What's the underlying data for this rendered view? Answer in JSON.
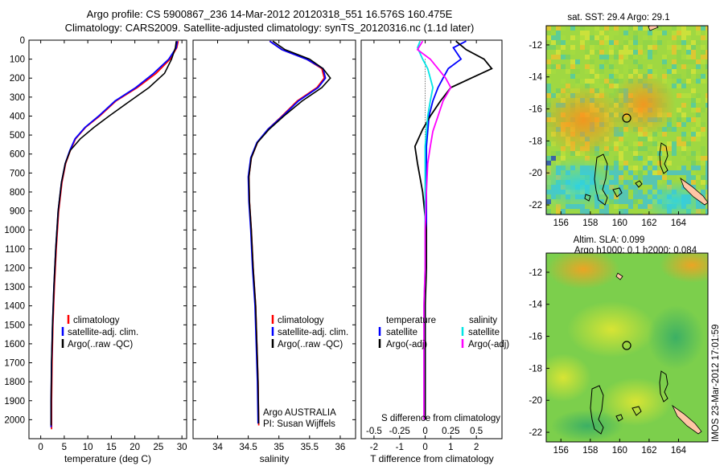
{
  "header": {
    "line1": "Argo profile: CS 5900867_236 14-Mar-2012 20120318_551 16.576S 160.475E",
    "line2": "Climatology: CARS2009. Satellite-adjusted climatology: synTS_20120316.nc (1.1d later)"
  },
  "watermark": "IMOS 23-Mar-2012 17:01:59",
  "colors": {
    "climatology": "#ff0000",
    "satellite": "#0000ff",
    "argo": "#000000",
    "sal_satellite": "#00e5e5",
    "sal_argo": "#ff00ff",
    "land": "#ffc6a5"
  },
  "chart_data": [
    {
      "type": "line",
      "xlabel": "temperature (deg C)",
      "ylabel": "",
      "xlim": [
        -2.5,
        31
      ],
      "ylim": [
        2100,
        0
      ],
      "xticks": [
        0,
        5,
        10,
        15,
        20,
        25,
        30
      ],
      "xtick_labels": [
        "0",
        "5",
        "10",
        "15",
        "20",
        "25",
        "30"
      ],
      "yticks": [
        0,
        100,
        200,
        300,
        400,
        500,
        600,
        700,
        800,
        900,
        1000,
        1100,
        1200,
        1300,
        1400,
        1500,
        1600,
        1700,
        1800,
        1900,
        2000
      ],
      "ytick_labels": [
        "0",
        "100",
        "200",
        "300",
        "400",
        "500",
        "600",
        "700",
        "800",
        "900",
        "1000",
        "1100",
        "1200",
        "1300",
        "1400",
        "1500",
        "1600",
        "1700",
        "1800",
        "1900",
        "2000"
      ],
      "legend": [
        "climatology",
        "satellite-adj. clim.",
        "Argo(..raw -QC)"
      ],
      "series": [
        {
          "name": "climatology",
          "color": "#ff0000",
          "x": [
            29.2,
            28.9,
            27.5,
            24.5,
            20.5,
            16.0,
            12.5,
            9.5,
            7.4,
            6.3,
            5.3,
            4.5,
            3.8,
            3.3,
            2.9,
            2.6,
            2.4,
            2.3,
            2.3
          ],
          "y": [
            5,
            40,
            100,
            175,
            250,
            320,
            400,
            460,
            520,
            580,
            650,
            750,
            900,
            1100,
            1300,
            1500,
            1700,
            1900,
            2050
          ]
        },
        {
          "name": "satellite-adj. clim.",
          "color": "#0000ff",
          "x": [
            29.0,
            28.8,
            27.2,
            24.0,
            20.2,
            15.8,
            12.3,
            9.4,
            7.3,
            6.2,
            5.2,
            4.4,
            3.7,
            3.2,
            2.8,
            2.5,
            2.3,
            2.2,
            2.2
          ],
          "y": [
            5,
            40,
            100,
            175,
            250,
            320,
            400,
            460,
            520,
            580,
            650,
            750,
            900,
            1100,
            1300,
            1500,
            1700,
            1900,
            2040
          ]
        },
        {
          "name": "Argo(..raw -QC)",
          "color": "#000000",
          "x": [
            28.8,
            28.6,
            27.8,
            26.3,
            23.0,
            19.0,
            14.5,
            11.3,
            8.4,
            6.3,
            5.2,
            4.4,
            3.7,
            3.2,
            2.8,
            2.5,
            2.3,
            2.2,
            2.2
          ],
          "y": [
            5,
            40,
            100,
            175,
            250,
            320,
            400,
            460,
            520,
            580,
            650,
            750,
            900,
            1100,
            1300,
            1500,
            1700,
            1900,
            2030
          ]
        }
      ]
    },
    {
      "type": "line",
      "xlabel": "salinity",
      "ylabel": "",
      "xlim": [
        33.6,
        36.25
      ],
      "ylim": [
        2100,
        0
      ],
      "xticks": [
        34,
        34.5,
        35,
        35.5,
        36
      ],
      "xtick_labels": [
        "34",
        "34.5",
        "35",
        "35.5",
        "36"
      ],
      "legend": [
        "climatology",
        "satellite-adj. clim.",
        "Argo(..raw -QC)"
      ],
      "annotation_lines": [
        "Argo AUSTRALIA",
        "PI: Susan Wijffels"
      ],
      "series": [
        {
          "name": "climatology",
          "color": "#ff0000",
          "x": [
            34.85,
            35.05,
            35.45,
            35.7,
            35.74,
            35.62,
            35.3,
            35.05,
            34.82,
            34.65,
            34.55,
            34.51,
            34.52,
            34.55,
            34.58,
            34.62,
            34.64,
            34.66,
            34.67
          ],
          "y": [
            5,
            50,
            100,
            150,
            200,
            250,
            320,
            400,
            470,
            540,
            620,
            720,
            850,
            1000,
            1200,
            1400,
            1600,
            1800,
            2030
          ]
        },
        {
          "name": "satellite-adj. clim.",
          "color": "#0000ff",
          "x": [
            34.85,
            35.05,
            35.45,
            35.72,
            35.76,
            35.64,
            35.32,
            35.06,
            34.82,
            34.64,
            34.54,
            34.5,
            34.51,
            34.54,
            34.57,
            34.61,
            34.63,
            34.65,
            34.66
          ],
          "y": [
            5,
            50,
            100,
            150,
            200,
            250,
            320,
            400,
            470,
            540,
            620,
            720,
            850,
            1000,
            1200,
            1400,
            1600,
            1800,
            2020
          ]
        },
        {
          "name": "Argo(..raw -QC)",
          "color": "#000000",
          "x": [
            34.9,
            35.1,
            35.5,
            35.72,
            35.84,
            35.7,
            35.38,
            35.08,
            34.84,
            34.65,
            34.55,
            34.51,
            34.52,
            34.55,
            34.58,
            34.62,
            34.64,
            34.66,
            34.67
          ],
          "y": [
            5,
            50,
            100,
            150,
            200,
            250,
            320,
            400,
            470,
            540,
            620,
            720,
            850,
            1000,
            1200,
            1400,
            1600,
            1800,
            2020
          ]
        }
      ]
    },
    {
      "type": "line",
      "xlabel": "T difference from climatology",
      "top_axis_label": "S difference from climatology",
      "xlim": [
        -2.5,
        3
      ],
      "ylim": [
        2100,
        0
      ],
      "xticks": [
        -2,
        -1,
        0,
        1,
        2
      ],
      "xtick_labels": [
        "-2",
        "-1",
        "0",
        "1",
        "2"
      ],
      "sticks": [
        -2,
        -1,
        0,
        1,
        2
      ],
      "stick_labels": [
        "-0.5",
        "-0.25",
        "0",
        "0.25",
        "0.5"
      ],
      "legend_temperature_title": "temperature",
      "legend_salinity_title": "salinity",
      "legend": [
        "satellite",
        "Argo(-adj)",
        "satellite",
        "Argo(-adj)"
      ],
      "series": [
        {
          "name": "satellite",
          "color": "#0000ff",
          "x": [
            1.6,
            1.1,
            1.4,
            0.9,
            0.7,
            0.5,
            0.3,
            0.15,
            0.1,
            0.05,
            0.05,
            0.05,
            0.05,
            0.0,
            0.0,
            0.0,
            0.0
          ],
          "y": [
            5,
            40,
            100,
            150,
            200,
            250,
            320,
            400,
            480,
            560,
            650,
            800,
            1000,
            1200,
            1400,
            1700,
            2000
          ]
        },
        {
          "name": "Argo(-adj)",
          "color": "#000000",
          "x": [
            1.2,
            1.6,
            2.3,
            2.6,
            1.8,
            1.0,
            0.6,
            0.2,
            -0.1,
            -0.4,
            -0.3,
            -0.1,
            0.05,
            0.05,
            0.0,
            0.0,
            0.0
          ],
          "y": [
            5,
            50,
            100,
            150,
            200,
            250,
            320,
            400,
            470,
            560,
            650,
            800,
            1000,
            1200,
            1400,
            1700,
            2000
          ]
        },
        {
          "name": "satellite",
          "color": "#00e5e5",
          "x": [
            -0.2,
            -0.3,
            -0.1,
            0.1,
            0.2,
            0.3,
            0.2,
            0.1,
            0.05,
            0.0,
            0.0,
            0.0,
            0.0,
            0.0,
            -0.05,
            -0.05,
            -0.05
          ],
          "y": [
            5,
            40,
            100,
            150,
            200,
            250,
            320,
            400,
            480,
            560,
            650,
            800,
            1000,
            1200,
            1400,
            1700,
            2000
          ]
        },
        {
          "name": "Argo(-adj)",
          "color": "#ff00ff",
          "x": [
            -0.1,
            -0.3,
            0.2,
            0.5,
            0.8,
            1.0,
            0.7,
            0.5,
            0.3,
            0.2,
            0.1,
            0.05,
            0.0,
            0.0,
            -0.05,
            -0.05,
            -0.05
          ],
          "y": [
            5,
            50,
            100,
            150,
            200,
            250,
            320,
            400,
            480,
            560,
            650,
            800,
            1000,
            1200,
            1400,
            1700,
            2000
          ]
        }
      ]
    },
    {
      "type": "heatmap",
      "title": "sat. SST: 29.4  Argo: 29.1",
      "xlim": [
        155,
        166
      ],
      "ylim": [
        -22.6,
        -10.8
      ],
      "xticks": [
        156,
        158,
        160,
        162,
        164
      ],
      "xtick_labels": [
        "156",
        "158",
        "160",
        "162",
        "164"
      ],
      "yticks": [
        -12,
        -14,
        -16,
        -18,
        -20,
        -22
      ],
      "ytick_labels": [
        "-12",
        "-14",
        "-16",
        "-18",
        "-20",
        "-22"
      ],
      "marker": {
        "lon": 160.475,
        "lat": -16.576
      }
    },
    {
      "type": "heatmap",
      "title_line1": "Altim. SLA: 0.099",
      "title_line2": "Argo h1000: 0.1  h2000: 0.084",
      "xlim": [
        155,
        166
      ],
      "ylim": [
        -22.6,
        -10.8
      ],
      "xticks": [
        156,
        158,
        160,
        162,
        164
      ],
      "xtick_labels": [
        "156",
        "158",
        "160",
        "162",
        "164"
      ],
      "yticks": [
        -12,
        -14,
        -16,
        -18,
        -20,
        -22
      ],
      "ytick_labels": [
        "-12",
        "-14",
        "-16",
        "-18",
        "-20",
        "-22"
      ],
      "marker": {
        "lon": 160.475,
        "lat": -16.576
      }
    }
  ]
}
